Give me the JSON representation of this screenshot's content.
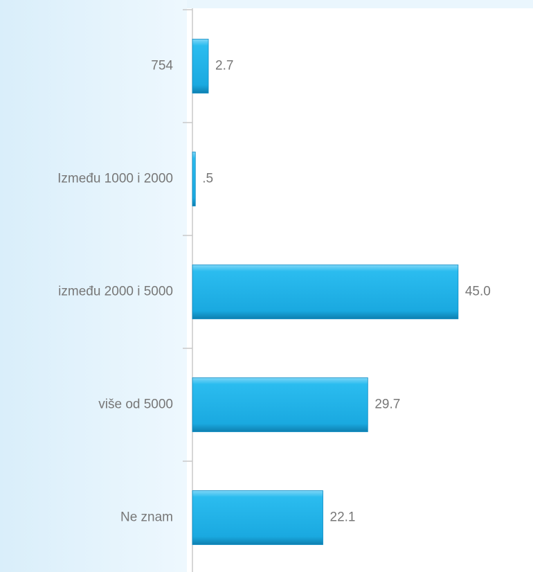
{
  "chart_data": {
    "type": "bar",
    "orientation": "horizontal",
    "categories": [
      "754",
      "Između 1000 i 2000",
      "između 2000 i 5000",
      "više od 5000",
      "Ne znam"
    ],
    "values": [
      2.7,
      0.5,
      45.0,
      29.7,
      22.1
    ],
    "value_labels": [
      "2.7",
      ".5",
      "45.0",
      "29.7",
      "22.1"
    ],
    "color": "#1fb4ea"
  }
}
